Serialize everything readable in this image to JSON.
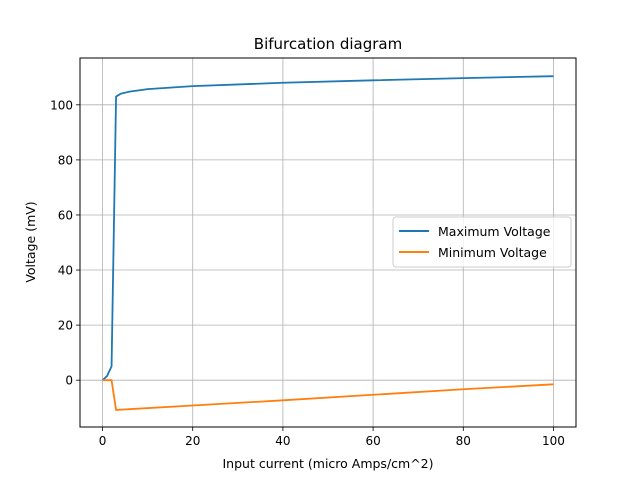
{
  "chart_data": {
    "type": "line",
    "title": "Bifurcation diagram",
    "xlabel": "Input current (micro Amps/cm^2)",
    "ylabel": "Voltage (mV)",
    "xlim": [
      -5,
      105
    ],
    "ylim": [
      -17,
      117
    ],
    "xticks": [
      0,
      20,
      40,
      60,
      80,
      100
    ],
    "yticks": [
      0,
      20,
      40,
      60,
      80,
      100
    ],
    "grid": true,
    "legend_position": "center-right",
    "series": [
      {
        "name": "Maximum Voltage",
        "color": "#1f77b4",
        "x": [
          0,
          1,
          2,
          3,
          4,
          6,
          10,
          20,
          40,
          60,
          80,
          100
        ],
        "y": [
          0,
          1.5,
          5,
          103,
          104,
          104.8,
          105.7,
          106.8,
          108,
          108.9,
          109.7,
          110.4
        ]
      },
      {
        "name": "Minimum Voltage",
        "color": "#ff7f0e",
        "x": [
          0,
          2,
          3,
          20,
          40,
          60,
          80,
          100
        ],
        "y": [
          0,
          0,
          -10.8,
          -9.2,
          -7.3,
          -5.3,
          -3.3,
          -1.5
        ]
      }
    ]
  }
}
